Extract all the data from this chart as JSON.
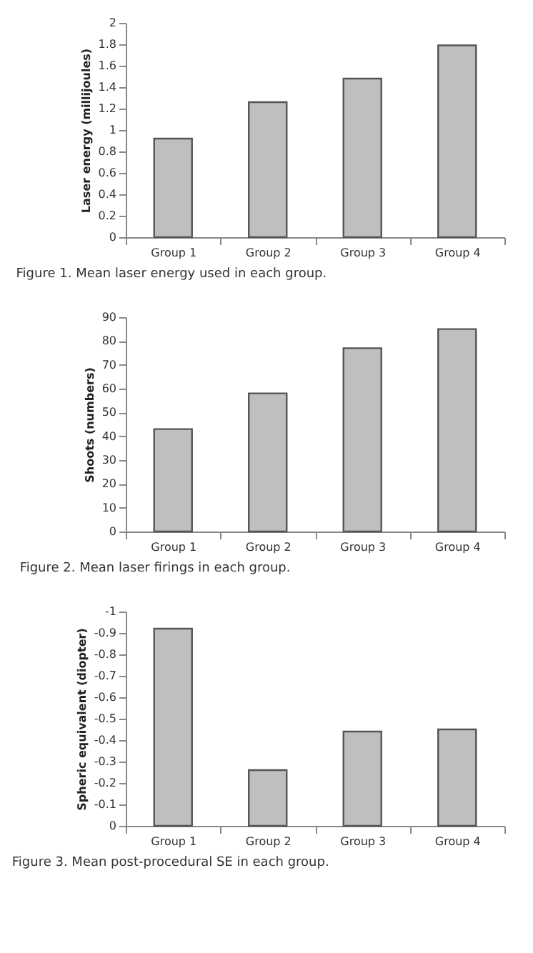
{
  "chart_data": [
    {
      "type": "bar",
      "categories": [
        "Group 1",
        "Group 2",
        "Group 3",
        "Group 4"
      ],
      "values": [
        0.92,
        1.26,
        1.48,
        1.79
      ],
      "color": "#bfbfbf",
      "ylabel": "Laser energy (millijoules)",
      "ylim": [
        0,
        2
      ],
      "yticks": [
        0,
        0.2,
        0.4,
        0.6,
        0.8,
        1,
        1.2,
        1.4,
        1.6,
        1.8,
        2
      ],
      "grid": false,
      "annotations": [
        "Figure 1. Mean laser energy used in each group."
      ]
    },
    {
      "type": "bar",
      "categories": [
        "Group 1",
        "Group 2",
        "Group 3",
        "Group 4"
      ],
      "values": [
        43,
        58,
        77,
        85
      ],
      "color": "#bfbfbf",
      "ylabel": "Shoots (numbers)",
      "ylim": [
        0,
        90
      ],
      "yticks": [
        0,
        10,
        20,
        30,
        40,
        50,
        60,
        70,
        80,
        90
      ],
      "grid": false,
      "annotations": [
        "Figure 2. Mean laser firings in each group."
      ]
    },
    {
      "type": "bar",
      "categories": [
        "Group 1",
        "Group 2",
        "Group 3",
        "Group 4"
      ],
      "values": [
        -0.92,
        -0.26,
        -0.44,
        -0.45
      ],
      "color": "#bfbfbf",
      "ylabel": "Spheric equivalent (diopter)",
      "ylim": [
        0,
        -1
      ],
      "yticks": [
        0,
        -0.1,
        -0.2,
        -0.3,
        -0.4,
        -0.5,
        -0.6,
        -0.7,
        -0.8,
        -0.9,
        -1
      ],
      "grid": false,
      "annotations": [
        "Figure 3. Mean post-procedural SE in each group."
      ]
    }
  ]
}
